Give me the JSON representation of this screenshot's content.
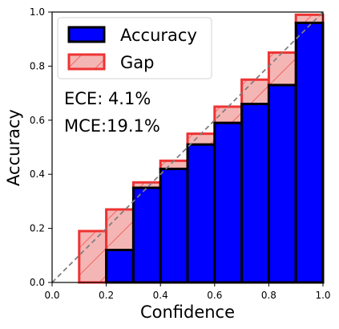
{
  "chart_data": {
    "type": "bar",
    "xlabel": "Confidence",
    "ylabel": "Accuracy",
    "xlim": [
      0.0,
      1.0
    ],
    "ylim": [
      0.0,
      1.0
    ],
    "x_ticks": [
      "0.0",
      "0.2",
      "0.4",
      "0.6",
      "0.8",
      "1.0"
    ],
    "y_ticks": [
      "0.0",
      "0.2",
      "0.4",
      "0.6",
      "0.8",
      "1.0"
    ],
    "grid": false,
    "legend_position": "top-left",
    "bins": [
      {
        "x0": 0.0,
        "x1": 0.1,
        "accuracy": 0.0,
        "gap_top": 0.0
      },
      {
        "x0": 0.1,
        "x1": 0.2,
        "accuracy": 0.0,
        "gap_top": 0.19
      },
      {
        "x0": 0.2,
        "x1": 0.3,
        "accuracy": 0.12,
        "gap_top": 0.27
      },
      {
        "x0": 0.3,
        "x1": 0.4,
        "accuracy": 0.35,
        "gap_top": 0.37
      },
      {
        "x0": 0.4,
        "x1": 0.5,
        "accuracy": 0.42,
        "gap_top": 0.45
      },
      {
        "x0": 0.5,
        "x1": 0.6,
        "accuracy": 0.51,
        "gap_top": 0.55
      },
      {
        "x0": 0.6,
        "x1": 0.7,
        "accuracy": 0.59,
        "gap_top": 0.65
      },
      {
        "x0": 0.7,
        "x1": 0.8,
        "accuracy": 0.66,
        "gap_top": 0.75
      },
      {
        "x0": 0.8,
        "x1": 0.9,
        "accuracy": 0.73,
        "gap_top": 0.85
      },
      {
        "x0": 0.9,
        "x1": 1.0,
        "accuracy": 0.96,
        "gap_top": 0.99
      }
    ],
    "series": [
      {
        "name": "Accuracy",
        "color": "#0000ff"
      },
      {
        "name": "Gap",
        "color": "#f4b6b4",
        "edge": "#ee3333"
      }
    ],
    "reference_line": {
      "from": [
        0,
        0
      ],
      "to": [
        1,
        1
      ],
      "style": "dashed",
      "color": "#808080"
    },
    "annotations": [
      "ECE: 4.1%",
      "MCE:19.1%"
    ]
  }
}
